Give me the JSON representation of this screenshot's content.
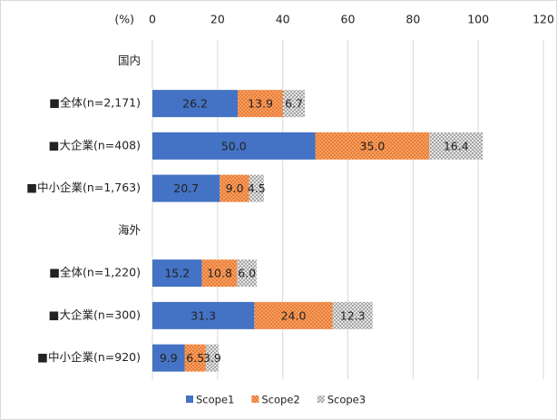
{
  "chart_data": {
    "type": "stacked-barh",
    "axis_unit_label": "(%)",
    "categories": [
      "国内",
      "■全体(n=2,171)",
      "■大企業(n=408)",
      "■中小企業(n=1,763)",
      "海外",
      "■全体(n=1,220)",
      "■大企業(n=300)",
      "■中小企業(n=920)"
    ],
    "series": [
      {
        "name": "Scope1",
        "color": "#4472c4",
        "pattern": "solid",
        "values": [
          null,
          26.2,
          50.0,
          20.7,
          null,
          15.2,
          31.3,
          9.9
        ],
        "value_labels": [
          null,
          "26.2",
          "50.0",
          "20.7",
          null,
          "15.2",
          "31.3",
          "9.9"
        ]
      },
      {
        "name": "Scope2",
        "color": "#ed7d31",
        "pattern": "dots",
        "values": [
          null,
          13.9,
          35.0,
          9.0,
          null,
          10.8,
          24.0,
          6.5
        ],
        "value_labels": [
          null,
          "13.9",
          "35.0",
          "9.0",
          null,
          "10.8",
          "24.0",
          "6.5"
        ]
      },
      {
        "name": "Scope3",
        "color": "#a5a5a5",
        "pattern": "checker",
        "values": [
          null,
          6.7,
          16.4,
          4.5,
          null,
          6.0,
          12.3,
          3.9
        ],
        "value_labels": [
          null,
          "6.7",
          "16.4",
          "4.5",
          null,
          "6.0",
          "12.3",
          "3.9"
        ]
      }
    ],
    "xlim": [
      0,
      120
    ],
    "xticks": [
      0,
      20,
      40,
      60,
      80,
      100,
      120
    ],
    "grid": true,
    "legend": "bottom"
  }
}
